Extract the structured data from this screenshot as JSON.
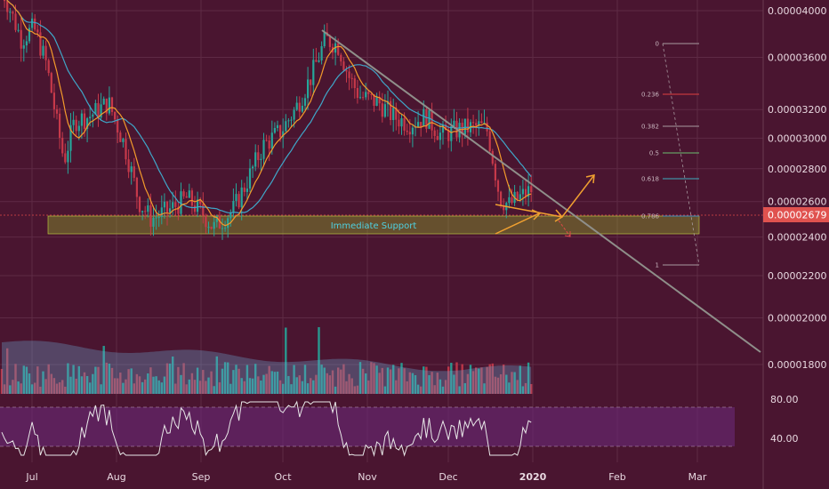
{
  "chart_data": {
    "type": "candlestick",
    "price_axis": {
      "ticks": [
        "0.00004000",
        "0.00003600",
        "0.00003200",
        "0.00003000",
        "0.00002800",
        "0.00002600",
        "0.00002400",
        "0.00002200",
        "0.00002000",
        "0.00001800"
      ],
      "current_price": "0.00002679"
    },
    "rsi_axis": {
      "ticks": [
        "80.00",
        "40.00"
      ]
    },
    "x_axis": {
      "months": [
        "Jul",
        "Aug",
        "Sep",
        "Oct",
        "Nov",
        "Dec",
        "2020",
        "Feb",
        "Mar"
      ]
    },
    "annotations": {
      "support_label": "Immediate Support",
      "fib_levels": [
        "0",
        "0.236",
        "0.382",
        "0.5",
        "0.618",
        "0.786",
        "1"
      ]
    },
    "colors": {
      "background": "#4a1530",
      "bull": "#26a69a",
      "bear": "#c6394a",
      "fast_ma": "#f39a2b",
      "slow_ma": "#3fa7c9",
      "trendline": "#8a8a86",
      "support_zone": "#7a8a2a",
      "price_line": "#e04848",
      "current_price_badge": "#e0524f"
    }
  }
}
